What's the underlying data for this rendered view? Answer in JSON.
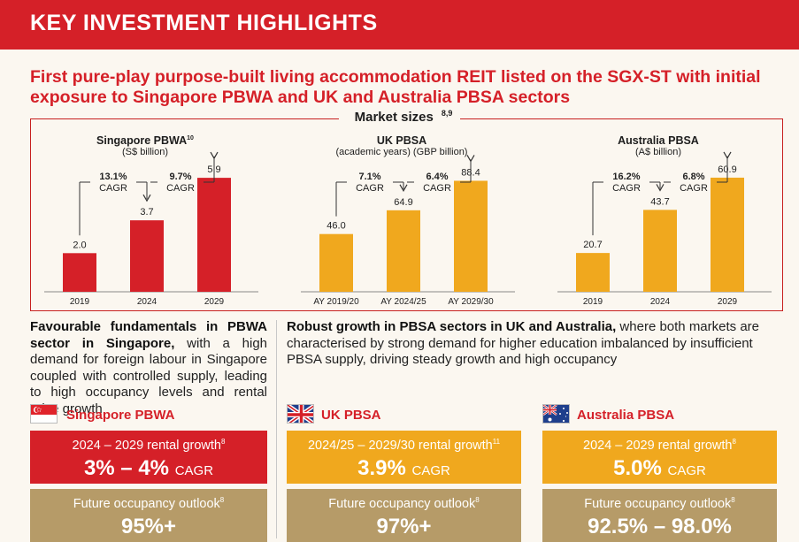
{
  "banner": {
    "title": "KEY INVESTMENT HIGHLIGHTS"
  },
  "headline": "First pure-play purpose-built living accommodation REIT listed on the SGX-ST with initial exposure to Singapore PBWA and UK and Australia PBSA sectors",
  "market_sizes": {
    "title": "Market sizes",
    "footnote": "8,9"
  },
  "chart_data": [
    {
      "type": "bar",
      "title": "Singapore PBWA",
      "title_footnote": "10",
      "subtitle": "(S$ billion)",
      "categories": [
        "2019",
        "2024",
        "2029"
      ],
      "values": [
        2.0,
        3.7,
        5.9
      ],
      "value_labels": [
        "2.0",
        "3.7",
        "5.9"
      ],
      "ylim": [
        0,
        6.5
      ],
      "color": "#d52028",
      "cagr": [
        {
          "value": "13.1%",
          "label": "CAGR"
        },
        {
          "value": "9.7%",
          "label": "CAGR"
        }
      ]
    },
    {
      "type": "bar",
      "title": "UK PBSA",
      "title_footnote": "",
      "subtitle": "(academic years) (GBP billion)",
      "categories": [
        "AY 2019/20",
        "AY 2024/25",
        "AY 2029/30"
      ],
      "values": [
        46.0,
        64.9,
        88.4
      ],
      "value_labels": [
        "46.0",
        "64.9",
        "88.4"
      ],
      "ylim": [
        0,
        100
      ],
      "color": "#f0a81e",
      "cagr": [
        {
          "value": "7.1%",
          "label": "CAGR"
        },
        {
          "value": "6.4%",
          "label": "CAGR"
        }
      ]
    },
    {
      "type": "bar",
      "title": "Australia PBSA",
      "title_footnote": "",
      "subtitle": "(A$ billion)",
      "categories": [
        "2019",
        "2024",
        "2029"
      ],
      "values": [
        20.7,
        43.7,
        60.9
      ],
      "value_labels": [
        "20.7",
        "43.7",
        "60.9"
      ],
      "ylim": [
        0,
        67
      ],
      "color": "#f0a81e",
      "cagr": [
        {
          "value": "16.2%",
          "label": "CAGR"
        },
        {
          "value": "6.8%",
          "label": "CAGR"
        }
      ]
    }
  ],
  "left_desc": {
    "bold": "Favourable fundamentals in PBWA sector in Singapore,",
    "rest": " with a high demand for foreign labour in Singapore coupled with controlled supply, leading to high occupancy levels and rental price growth"
  },
  "right_desc": {
    "bold": "Robust growth in PBSA sectors in UK and Australia,",
    "rest": " where both markets are characterised by strong demand for higher education imbalanced by insufficient PBSA supply, driving steady growth and high occupancy"
  },
  "sections": [
    {
      "name": "Singapore PBWA",
      "flag_icon": "singapore-flag-icon",
      "rental_label": "2024 – 2029 rental growth",
      "rental_footnote": "8",
      "rental_value": "3% – 4%",
      "rental_unit": "CAGR",
      "occupancy_label": "Future occupancy outlook",
      "occupancy_footnote": "8",
      "occupancy_value": "95%+"
    },
    {
      "name": "UK PBSA",
      "flag_icon": "uk-flag-icon",
      "rental_label": "2024/25 – 2029/30 rental growth",
      "rental_footnote": "11",
      "rental_value": "3.9%",
      "rental_unit": "CAGR",
      "occupancy_label": "Future occupancy outlook",
      "occupancy_footnote": "8",
      "occupancy_value": "97%+"
    },
    {
      "name": "Australia PBSA",
      "flag_icon": "australia-flag-icon",
      "rental_label": "2024 – 2029 rental growth",
      "rental_footnote": "8",
      "rental_value": "5.0%",
      "rental_unit": "CAGR",
      "occupancy_label": "Future occupancy outlook",
      "occupancy_footnote": "8",
      "occupancy_value": "92.5% – 98.0%"
    }
  ]
}
